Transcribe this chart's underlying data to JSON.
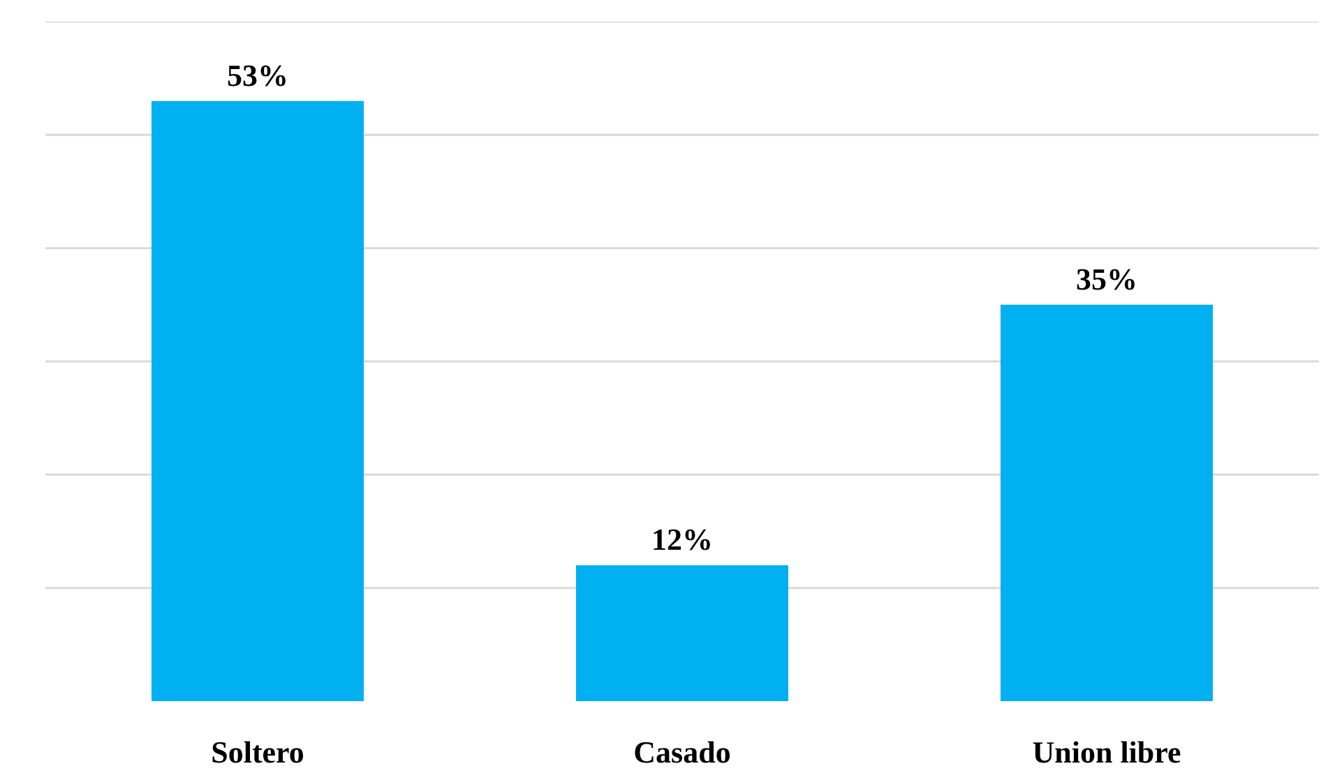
{
  "chart_data": {
    "type": "bar",
    "categories": [
      "Soltero",
      "Casado",
      "Union libre"
    ],
    "values": [
      53,
      12,
      35
    ],
    "color": "#00b0f0",
    "value_labels": [
      "53%",
      "12%",
      "35%"
    ],
    "ylim": [
      0,
      60
    ],
    "yticks": [
      {
        "value": 10,
        "label": null
      },
      {
        "value": 20,
        "label": null
      },
      {
        "value": 30,
        "label": null
      },
      {
        "value": 40,
        "label": null
      },
      {
        "value": 50,
        "label": null
      },
      {
        "value": 60,
        "label": null
      }
    ],
    "grid": "y",
    "tick_labels": "x"
  }
}
